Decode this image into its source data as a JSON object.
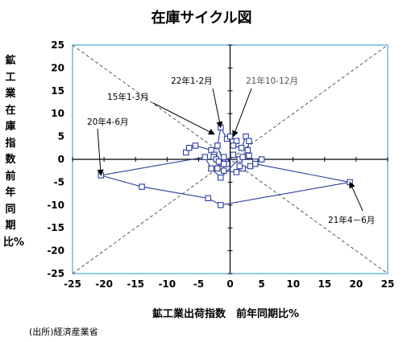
{
  "chart_data": {
    "type": "scatter",
    "title": "在庫サイクル図",
    "xlabel": "鉱工業出荷指数　前年同期比%",
    "ylabel": "鉱工業在庫指数　　前年同期比%",
    "source": "(出所)経済産業省",
    "xlim": [
      -25,
      25
    ],
    "ylim": [
      -25,
      25
    ],
    "x_ticks": [
      -25,
      -20,
      -15,
      -10,
      -5,
      0,
      5,
      10,
      15,
      20,
      25
    ],
    "y_ticks": [
      -25,
      -20,
      -15,
      -10,
      -5,
      0,
      5,
      10,
      15,
      20,
      25
    ],
    "grid": false,
    "diagonals": true,
    "colors": {
      "series": "#2b3d9c",
      "frame": "#4aa8d8",
      "diagonal": "#555555"
    },
    "series": [
      {
        "points": [
          [
            -7,
            1.5
          ],
          [
            -6.5,
            2.5
          ],
          [
            -5.5,
            3
          ],
          [
            -3,
            2
          ],
          [
            -2.5,
            1
          ],
          [
            -2.6,
            0.5
          ],
          [
            -2.2,
            0
          ],
          [
            -1.8,
            -0.5
          ],
          [
            -2,
            -2
          ],
          [
            -1,
            0.5
          ],
          [
            -0.5,
            -1
          ],
          [
            0.5,
            1
          ],
          [
            1.5,
            0
          ],
          [
            2,
            0.5
          ],
          [
            3,
            0.8
          ],
          [
            4,
            -0.5
          ],
          [
            5,
            0
          ],
          [
            3.2,
            -1.5
          ],
          [
            2,
            -2
          ],
          [
            1.5,
            -1.5
          ],
          [
            1,
            -2.8
          ],
          [
            -1,
            -2.5
          ],
          [
            -1,
            -1
          ],
          [
            -2,
            3
          ],
          [
            -1.5,
            7
          ],
          [
            -0.5,
            4.5
          ],
          [
            0,
            5
          ],
          [
            1,
            4
          ],
          [
            0.5,
            3
          ],
          [
            1.8,
            2.5
          ],
          [
            2.5,
            5
          ],
          [
            3,
            4
          ],
          [
            2.8,
            2
          ],
          [
            -1.5,
            -4
          ],
          [
            -3,
            -2
          ],
          [
            -4,
            0.5
          ],
          [
            -20.5,
            -3.5
          ],
          [
            -14,
            -6
          ],
          [
            -3.5,
            -8.5
          ],
          [
            -1.5,
            -10
          ],
          [
            19,
            -5
          ],
          [
            4,
            -1
          ]
        ]
      }
    ],
    "annotations": [
      {
        "text": "15年1-3月",
        "x": -2.5,
        "y": 5.5
      },
      {
        "text": "22年1-2月",
        "x": -1.5,
        "y": 7
      },
      {
        "text": "21年10-12月",
        "x": 0.5,
        "y": 5
      },
      {
        "text": "20年4-6月",
        "x": -20.5,
        "y": -3.5
      },
      {
        "text": "21年4－6月",
        "x": 19,
        "y": -5
      }
    ]
  }
}
